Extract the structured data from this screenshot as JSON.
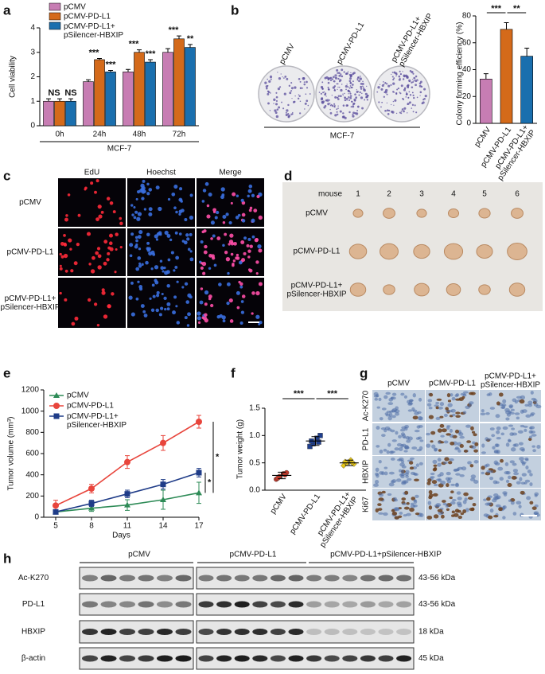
{
  "chart_data": [
    {
      "label": "a",
      "type": "bar",
      "categories": [
        "0h",
        "24h",
        "48h",
        "72h"
      ],
      "xlabel": "MCF-7",
      "ylabel": "Cell viability",
      "ylim": [
        0,
        4
      ],
      "yticks": [
        0,
        1,
        2,
        3,
        4
      ],
      "series": [
        {
          "name": "pCMV",
          "color": "#c77db3",
          "values": [
            1,
            1.8,
            2.2,
            3.0
          ],
          "errors": [
            0.1,
            0.08,
            0.1,
            0.15
          ]
        },
        {
          "name": "pCMV-PD-L1",
          "color": "#d46a1a",
          "values": [
            1,
            2.7,
            3.0,
            3.55
          ],
          "errors": [
            0.1,
            0.05,
            0.1,
            0.12
          ]
        },
        {
          "name": "pCMV-PD-L1+\npSilencer-HBXIP",
          "color": "#1a6fae",
          "values": [
            1,
            2.2,
            2.6,
            3.2
          ],
          "errors": [
            0.1,
            0.06,
            0.1,
            0.12
          ]
        }
      ],
      "significance": [
        [
          "NS",
          "NS"
        ],
        [
          "***",
          "***"
        ],
        [
          "***",
          "***"
        ],
        [
          "***",
          "**"
        ]
      ]
    },
    {
      "type": "bar",
      "categories": [
        "pCMV",
        "pCMV-PD-L1",
        "pCMV-PD-L1+\npSilencer-HBXIP"
      ],
      "values": [
        33,
        70,
        50
      ],
      "errors": [
        4,
        5,
        6
      ],
      "colors": [
        "#c77db3",
        "#d46a1a",
        "#1a6fae"
      ],
      "ylabel": "Colony forming efficiency (%)",
      "ylim": [
        0,
        80
      ],
      "yticks": [
        0,
        20,
        40,
        60,
        80
      ],
      "significance": [
        "***",
        "**"
      ]
    },
    {
      "label": "e",
      "type": "line",
      "x": [
        5,
        8,
        11,
        14,
        17
      ],
      "xlabel": "Days",
      "ylabel": "Tumor volume (mm³)",
      "xlim": [
        4,
        18
      ],
      "xticks": [
        5,
        8,
        11,
        14,
        17
      ],
      "ylim": [
        0,
        1200
      ],
      "yticks": [
        0,
        200,
        400,
        600,
        800,
        1000,
        1200
      ],
      "series": [
        {
          "name": "pCMV",
          "color": "#2e8b57",
          "marker": "triangle",
          "values": [
            50,
            85,
            115,
            165,
            230
          ],
          "errors": [
            15,
            30,
            50,
            90,
            100
          ]
        },
        {
          "name": "pCMV-PD-L1",
          "color": "#e8453c",
          "marker": "circle",
          "values": [
            110,
            270,
            520,
            700,
            900
          ],
          "errors": [
            50,
            40,
            60,
            70,
            60
          ]
        },
        {
          "name": "pCMV-PD-L1+\npSilencer-HBXIP",
          "color": "#1f3c88",
          "marker": "square",
          "values": [
            50,
            130,
            220,
            310,
            420
          ],
          "errors": [
            15,
            30,
            35,
            45,
            40
          ]
        }
      ],
      "significance": [
        "*",
        "*"
      ]
    },
    {
      "label": "f",
      "type": "dot",
      "categories": [
        "pCMV",
        "pCMV-PD-L1",
        "pCMV-PD-L1+\npSilencer-HBXIP"
      ],
      "ylabel": "Tumor weight (g)",
      "ylim": [
        0,
        1.5
      ],
      "yticks": [
        {
          "value": 0,
          "label": "0.0"
        },
        0.5,
        {
          "value": 1,
          "label": "1.0"
        },
        1.5
      ],
      "values": [
        [
          0.2,
          0.25,
          0.3,
          0.32,
          0.22,
          0.28
        ],
        [
          0.8,
          0.85,
          0.95,
          1.0,
          0.9,
          0.88
        ],
        [
          0.45,
          0.5,
          0.55,
          0.48,
          0.52,
          0.5
        ]
      ],
      "means": [
        0.27,
        0.9,
        0.5
      ],
      "sds": [
        0.06,
        0.08,
        0.05
      ],
      "colors": [
        "#c0392b",
        "#1f3f8f",
        "#e6c619"
      ],
      "significance": [
        "***",
        "***"
      ]
    }
  ],
  "figure": {
    "b": {
      "label": "b",
      "plates": [
        "pCMV",
        "pCMV-PD-L1",
        "pCMV-PD-L1+\npSilencer-HBXIP"
      ],
      "group": "MCF-7"
    },
    "c": {
      "label": "c",
      "columns": [
        "EdU",
        "Hoechst",
        "Merge"
      ],
      "rows": [
        "pCMV",
        "pCMV-PD-L1",
        "pCMV-PD-L1+\npSilencer-HBXIP"
      ]
    },
    "d": {
      "label": "d",
      "column_header": "mouse",
      "columns": [
        "1",
        "2",
        "3",
        "4",
        "5",
        "6"
      ],
      "rows": [
        "pCMV",
        "pCMV-PD-L1",
        "pCMV-PD-L1+\npSilencer-HBXIP"
      ]
    },
    "g": {
      "label": "g",
      "columns": [
        "pCMV",
        "pCMV-PD-L1",
        "pCMV-PD-L1+\npSilencer-HBXIP"
      ],
      "rows": [
        "Ac-K270",
        "PD-L1",
        "HBXIP",
        "Ki67"
      ]
    },
    "h": {
      "label": "h",
      "groups": [
        "pCMV",
        "pCMV-PD-L1",
        "pCMV-PD-L1+pSilencer-HBXIP"
      ],
      "rows": [
        {
          "name": "Ac-K270",
          "size": "43-56 kDa"
        },
        {
          "name": "PD-L1",
          "size": "43-56 kDa"
        },
        {
          "name": "HBXIP",
          "size": "18 kDa"
        },
        {
          "name": "β-actin",
          "size": "45 kDa"
        }
      ]
    }
  }
}
